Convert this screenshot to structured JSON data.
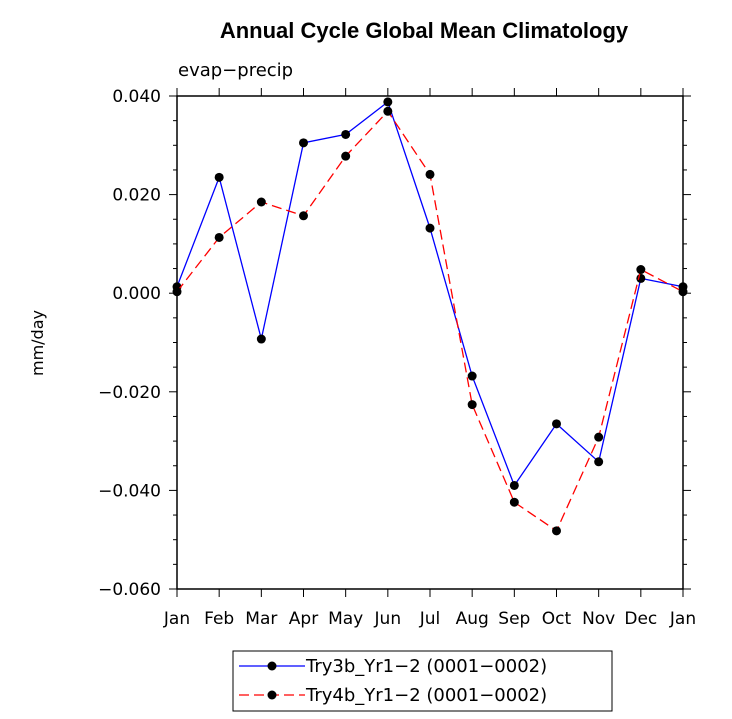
{
  "chart_data": {
    "type": "line",
    "title": "Annual Cycle Global Mean Climatology",
    "subtitle": "evap−precip",
    "xlabel": "",
    "ylabel": "mm/day",
    "categories": [
      "Jan",
      "Feb",
      "Mar",
      "Apr",
      "May",
      "Jun",
      "Jul",
      "Aug",
      "Sep",
      "Oct",
      "Nov",
      "Dec",
      "Jan"
    ],
    "ylim": [
      -0.06,
      0.04
    ],
    "yticks": [
      0.04,
      0.02,
      0.0,
      -0.02,
      -0.04,
      -0.06
    ],
    "ytick_labels": [
      "0.040",
      "0.020",
      "0.000",
      "−0.020",
      "−0.040",
      "−0.060"
    ],
    "series": [
      {
        "name": "Try3b_Yr1−2 (0001−0002)",
        "color": "#0000ff",
        "dash": "solid",
        "values": [
          0.0013,
          0.0235,
          -0.0093,
          0.0305,
          0.0322,
          0.0388,
          0.0132,
          -0.0168,
          -0.039,
          -0.0265,
          -0.0342,
          0.003,
          0.0013
        ]
      },
      {
        "name": "Try4b_Yr1−2 (0001−0002)",
        "color": "#ff0000",
        "dash": "dashed",
        "values": [
          0.0003,
          0.0113,
          0.0185,
          0.0157,
          0.0278,
          0.0369,
          0.0241,
          -0.0226,
          -0.0424,
          -0.0482,
          -0.0292,
          0.0048,
          0.0003
        ]
      }
    ],
    "legend_position": "bottom"
  }
}
